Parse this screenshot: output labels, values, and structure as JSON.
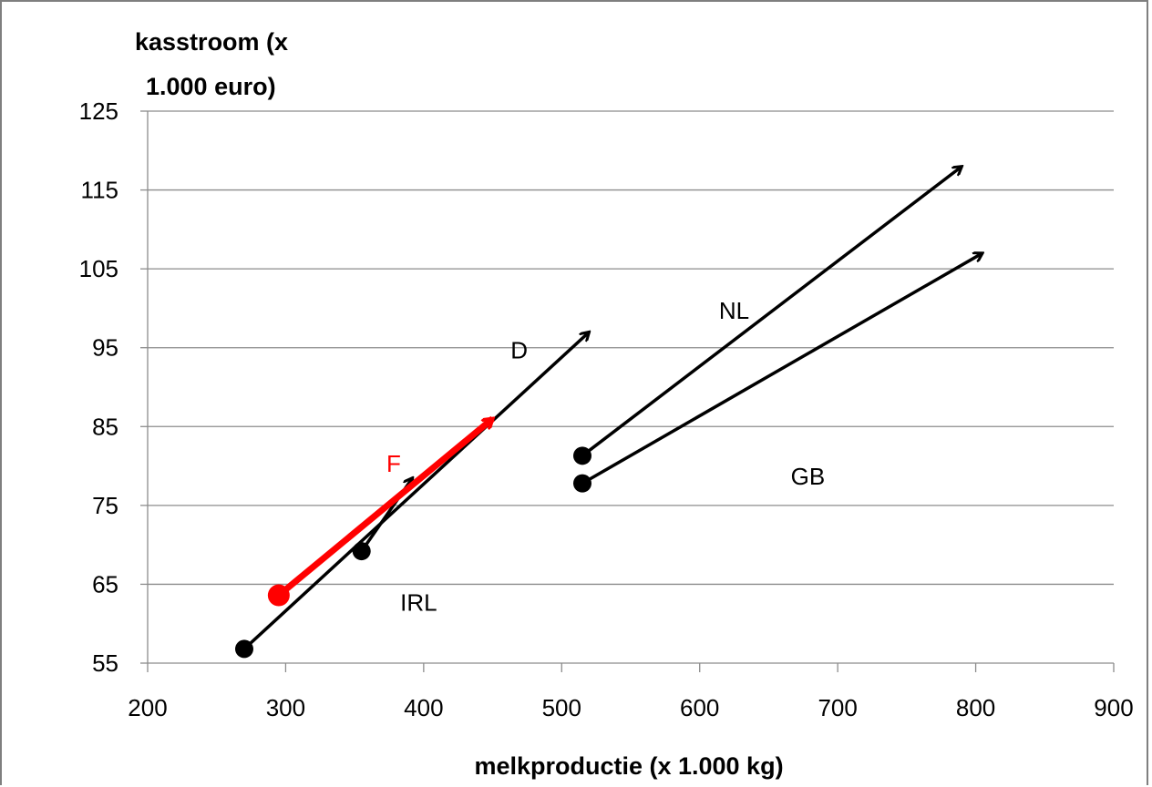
{
  "chart_data": {
    "type": "scatter",
    "title": "",
    "ylabel_lines": [
      "kasstroom (x",
      "1.000 euro)"
    ],
    "xlabel": "melkproductie (x 1.000 kg)",
    "xlim": [
      200,
      900
    ],
    "ylim": [
      55,
      125
    ],
    "xticks": [
      200,
      300,
      400,
      500,
      600,
      700,
      800,
      900
    ],
    "yticks": [
      55,
      65,
      75,
      85,
      95,
      105,
      115,
      125
    ],
    "grid": "horizontal",
    "series": [
      {
        "name": "D",
        "color": "#000000",
        "start": [
          270,
          56.8
        ],
        "end": [
          520,
          97.0
        ]
      },
      {
        "name": "IRL",
        "color": "#000000",
        "start": [
          355,
          69.2
        ],
        "end": [
          392,
          78.5
        ]
      },
      {
        "name": "F",
        "color": "#ff0000",
        "start": [
          295,
          63.6
        ],
        "end": [
          450,
          86.0
        ]
      },
      {
        "name": "NL",
        "color": "#000000",
        "start": [
          515,
          81.3
        ],
        "end": [
          790,
          118.0
        ]
      },
      {
        "name": "GB",
        "color": "#000000",
        "start": [
          515,
          77.8
        ],
        "end": [
          805,
          107.0
        ]
      }
    ],
    "labels": [
      {
        "text": "D",
        "x": 463,
        "y": 94.7,
        "color": "#000000"
      },
      {
        "text": "IRL",
        "x": 383,
        "y": 62.7,
        "color": "#000000"
      },
      {
        "text": "F",
        "x": 373,
        "y": 80.3,
        "color": "#ff0000"
      },
      {
        "text": "NL",
        "x": 614,
        "y": 99.7,
        "color": "#000000"
      },
      {
        "text": "GB",
        "x": 666,
        "y": 78.7,
        "color": "#000000"
      }
    ]
  }
}
